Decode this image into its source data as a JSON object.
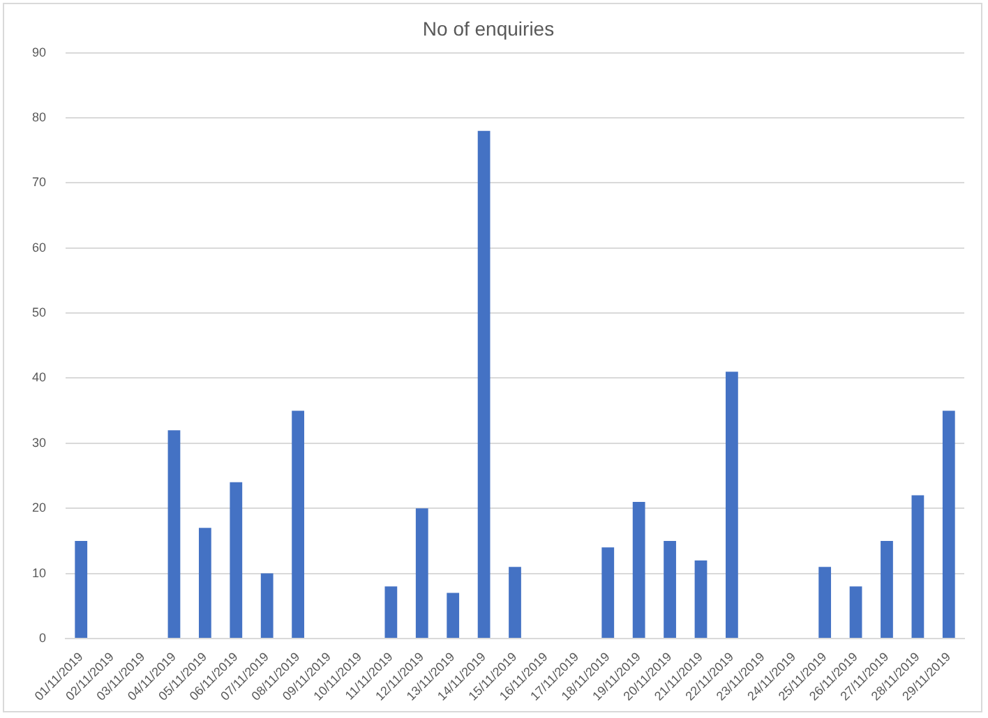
{
  "chart_data": {
    "type": "bar",
    "title": "No of enquiries",
    "categories": [
      "01/11/2019",
      "02/11/2019",
      "03/11/2019",
      "04/11/2019",
      "05/11/2019",
      "06/11/2019",
      "07/11/2019",
      "08/11/2019",
      "09/11/2019",
      "10/11/2019",
      "11/11/2019",
      "12/11/2019",
      "13/11/2019",
      "14/11/2019",
      "15/11/2019",
      "16/11/2019",
      "17/11/2019",
      "18/11/2019",
      "19/11/2019",
      "20/11/2019",
      "21/11/2019",
      "22/11/2019",
      "23/11/2019",
      "24/11/2019",
      "25/11/2019",
      "26/11/2019",
      "27/11/2019",
      "28/11/2019",
      "29/11/2019"
    ],
    "values": [
      15,
      0,
      0,
      32,
      17,
      24,
      10,
      35,
      0,
      0,
      8,
      20,
      7,
      78,
      11,
      0,
      0,
      14,
      21,
      15,
      12,
      41,
      0,
      0,
      11,
      8,
      15,
      22,
      35
    ],
    "color": "#4472c4",
    "ylim": [
      0,
      90
    ],
    "yticks": [
      0,
      10,
      20,
      30,
      40,
      50,
      60,
      70,
      80,
      90
    ],
    "grid": "y"
  }
}
